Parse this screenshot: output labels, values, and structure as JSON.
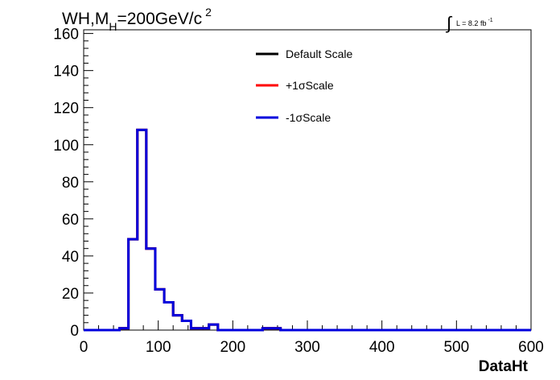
{
  "chart_data": {
    "type": "line",
    "title_parts": {
      "main": "WH,M",
      "sub": "H",
      "after": "=200GeV/c",
      "sup": "2"
    },
    "lumi_parts": {
      "main": "L = 8.2 fb",
      "sup": "-1"
    },
    "xlabel": "DataHt",
    "ylabel": "",
    "xlim": [
      0,
      600
    ],
    "ylim": [
      0,
      162
    ],
    "xticks": [
      "0",
      "100",
      "200",
      "300",
      "400",
      "500",
      "600"
    ],
    "yticks": [
      "0",
      "20",
      "40",
      "60",
      "80",
      "100",
      "120",
      "140",
      "160"
    ],
    "grid": false,
    "legend_position": "top-center",
    "bin_width": 12,
    "bin_edges_start": 0,
    "series": [
      {
        "name": "Default Scale",
        "color": "#000000",
        "values": [
          0,
          0,
          0,
          0,
          1,
          49,
          108,
          44,
          22,
          15,
          8,
          5,
          1,
          1,
          3,
          0,
          0,
          0,
          0,
          0,
          1,
          1,
          0,
          0,
          0,
          0,
          0,
          0,
          0,
          0,
          0,
          0,
          0,
          0,
          0,
          0,
          0,
          0,
          0,
          0,
          0,
          0,
          0,
          0,
          0,
          0,
          0,
          0,
          0,
          0
        ]
      },
      {
        "name": "+1σScale",
        "color": "#ff0000",
        "values": [
          0,
          0,
          0,
          0,
          1,
          49,
          108,
          44,
          22,
          15,
          8,
          5,
          1,
          1,
          3,
          0,
          0,
          0,
          0,
          0,
          1,
          1,
          0,
          0,
          0,
          0,
          0,
          0,
          0,
          0,
          0,
          0,
          0,
          0,
          0,
          0,
          0,
          0,
          0,
          0,
          0,
          0,
          0,
          0,
          0,
          0,
          0,
          0,
          0,
          0
        ]
      },
      {
        "name": "-1σScale",
        "color": "#0000dd",
        "values": [
          0,
          0,
          0,
          0,
          1,
          49,
          108,
          44,
          22,
          15,
          8,
          5,
          1,
          1,
          3,
          0,
          0,
          0,
          0,
          0,
          1,
          1,
          0,
          0,
          0,
          0,
          0,
          0,
          0,
          0,
          0,
          0,
          0,
          0,
          0,
          0,
          0,
          0,
          0,
          0,
          0,
          0,
          0,
          0,
          0,
          0,
          0,
          0,
          0,
          0
        ]
      }
    ]
  }
}
